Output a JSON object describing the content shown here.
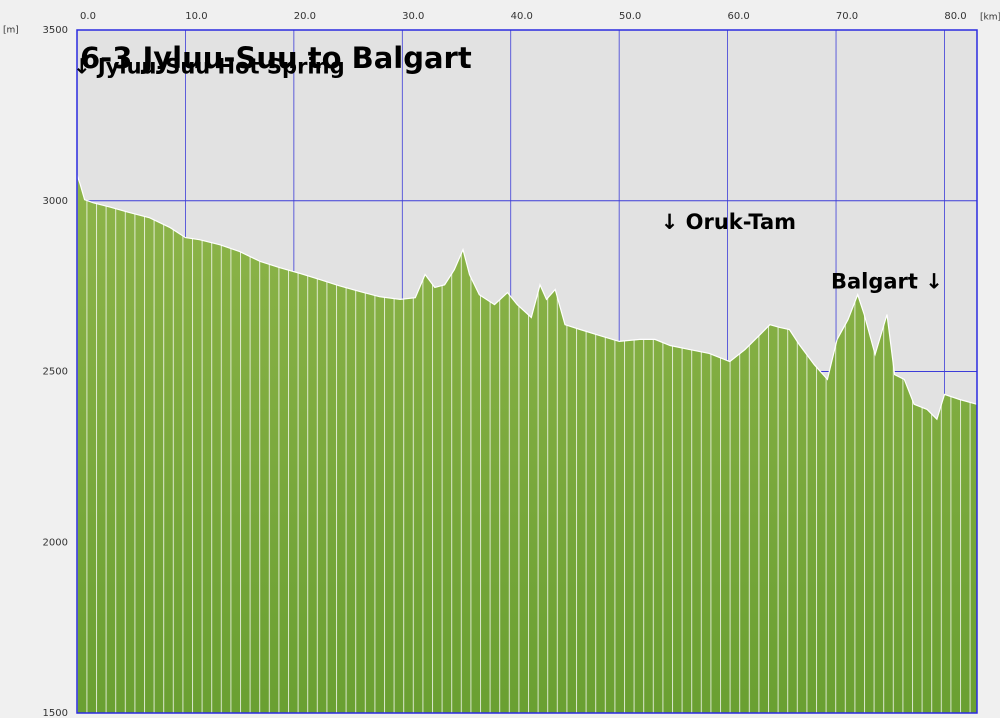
{
  "chart_data": {
    "type": "area",
    "title": "6-3 Jyluu-Suu to Balgart",
    "x_unit": "[km]",
    "y_unit": "[m]",
    "annotations": [
      {
        "text": "↓ Jyluu-Suu Hot Spring",
        "x": 0,
        "y": 3390
      },
      {
        "text": "↓ Oruk-Tam",
        "x": 54.2,
        "y": 2935
      },
      {
        "text": "Balgart ↓",
        "x": 69.9,
        "y": 2760
      }
    ],
    "color": "#7aa83a",
    "x": [
      0,
      0.3,
      0.7,
      1.5,
      3.0,
      4.9,
      6.7,
      8.6,
      10.0,
      11.3,
      13.2,
      15.0,
      16.9,
      18.7,
      20.6,
      22.4,
      24.2,
      26.1,
      27.9,
      29.8,
      31.2,
      32.1,
      33.0,
      33.9,
      34.8,
      35.6,
      36.2,
      37.1,
      38.5,
      39.7,
      40.6,
      41.9,
      42.7,
      43.3,
      44.1,
      45.0,
      46.4,
      48.2,
      50.0,
      51.9,
      53.3,
      54.7,
      56.5,
      58.3,
      60.2,
      61.6,
      63.0,
      63.9,
      64.8,
      65.7,
      66.6,
      68.0,
      69.2,
      70.1,
      71.1,
      72.0,
      72.6,
      73.6,
      74.7,
      75.4,
      76.3,
      77.2,
      78.4,
      79.3,
      80.0,
      81.4,
      83.0
    ],
    "values": [
      3076,
      3047,
      3003,
      2994,
      2982,
      2965,
      2950,
      2921,
      2892,
      2886,
      2871,
      2851,
      2822,
      2804,
      2787,
      2769,
      2751,
      2734,
      2719,
      2711,
      2716,
      2784,
      2746,
      2754,
      2798,
      2857,
      2784,
      2725,
      2696,
      2731,
      2696,
      2658,
      2754,
      2711,
      2740,
      2637,
      2623,
      2605,
      2588,
      2594,
      2594,
      2576,
      2564,
      2553,
      2529,
      2564,
      2608,
      2637,
      2629,
      2623,
      2579,
      2520,
      2477,
      2594,
      2652,
      2725,
      2667,
      2550,
      2667,
      2491,
      2477,
      2404,
      2389,
      2360,
      2433,
      2418,
      2404
    ],
    "xlim": [
      0,
      83
    ],
    "ylim": [
      1500,
      3500
    ],
    "xticks": [
      {
        "value": 0,
        "label": "0.0"
      },
      {
        "value": 10,
        "label": "10.0"
      },
      {
        "value": 20,
        "label": "20.0"
      },
      {
        "value": 30,
        "label": "30.0"
      },
      {
        "value": 40,
        "label": "40.0"
      },
      {
        "value": 50,
        "label": "50.0"
      },
      {
        "value": 60,
        "label": "60.0"
      },
      {
        "value": 70,
        "label": "70.0"
      },
      {
        "value": 80,
        "label": "80.0"
      }
    ],
    "yticks": [
      1500,
      2000,
      2500,
      3000,
      3500
    ],
    "grid": true
  }
}
